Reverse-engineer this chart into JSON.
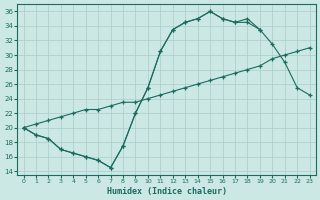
{
  "bg_color": "#cce8e4",
  "grid_color": "#aaccca",
  "line_color": "#1a6b60",
  "xlim": [
    -0.5,
    23.5
  ],
  "ylim": [
    13.5,
    37
  ],
  "xticks": [
    0,
    1,
    2,
    3,
    4,
    5,
    6,
    7,
    8,
    9,
    10,
    11,
    12,
    13,
    14,
    15,
    16,
    17,
    18,
    19,
    20,
    21,
    22,
    23
  ],
  "yticks": [
    14,
    16,
    18,
    20,
    22,
    24,
    26,
    28,
    30,
    32,
    34,
    36
  ],
  "xlabel": "Humidex (Indice chaleur)",
  "curve1_x": [
    0,
    1,
    2,
    3,
    4,
    5,
    6,
    7,
    8,
    9,
    10,
    11,
    12,
    13,
    14,
    15,
    16,
    17,
    18,
    19
  ],
  "curve1_y": [
    20.0,
    19.0,
    18.5,
    17.0,
    16.5,
    16.0,
    15.5,
    14.5,
    17.5,
    22.0,
    25.5,
    30.5,
    33.5,
    34.5,
    35.0,
    36.0,
    35.0,
    34.5,
    34.5,
    33.5
  ],
  "curve2_x": [
    0,
    1,
    2,
    3,
    4,
    5,
    6,
    7,
    8,
    9,
    10,
    11,
    12,
    13,
    14,
    15,
    16,
    17,
    18,
    19,
    20,
    21,
    22,
    23
  ],
  "curve2_y": [
    20.0,
    20.5,
    21.0,
    21.5,
    22.0,
    22.5,
    22.5,
    23.0,
    23.5,
    23.5,
    24.0,
    24.5,
    25.0,
    25.5,
    26.0,
    26.5,
    27.0,
    27.5,
    28.0,
    28.5,
    29.5,
    30.0,
    30.5,
    31.0
  ],
  "curve3_x": [
    0,
    1,
    2,
    3,
    4,
    5,
    6,
    7,
    8,
    9,
    10,
    11,
    12,
    13,
    14,
    15,
    16,
    17,
    18,
    19,
    20,
    21,
    22,
    23
  ],
  "curve3_y": [
    20.0,
    19.0,
    18.5,
    17.0,
    16.5,
    16.0,
    15.5,
    14.5,
    17.5,
    22.0,
    25.5,
    30.5,
    33.5,
    34.5,
    35.0,
    36.0,
    35.0,
    34.5,
    35.0,
    33.5,
    31.5,
    29.0,
    25.5,
    24.5
  ]
}
